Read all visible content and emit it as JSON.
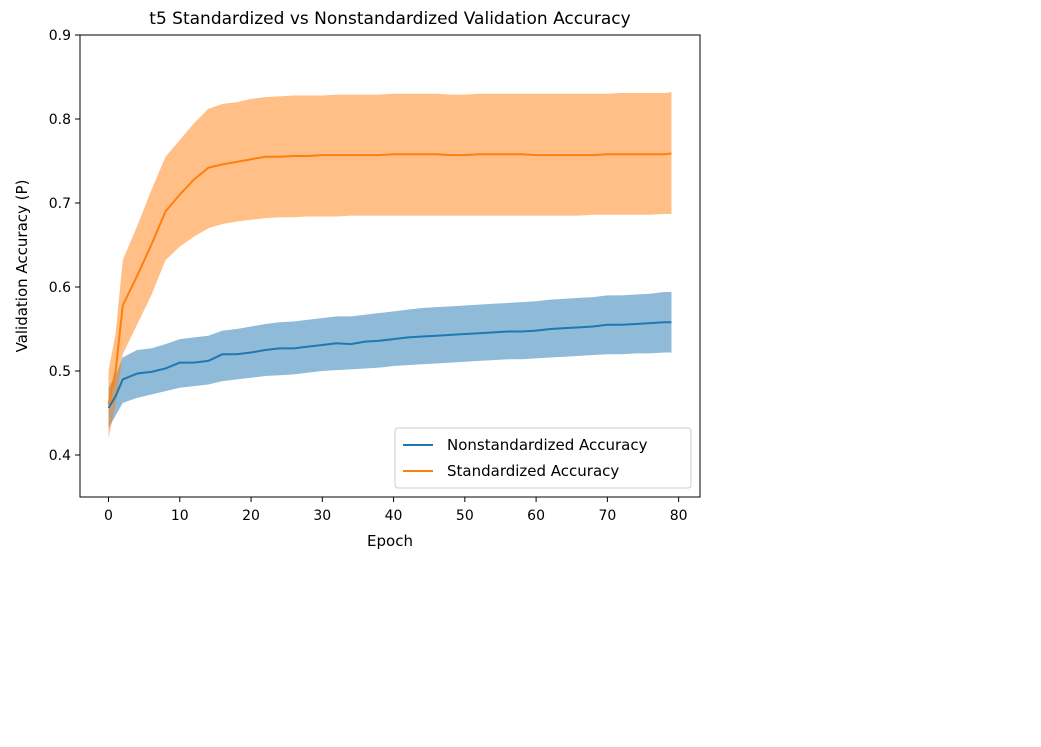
{
  "chart_data": {
    "type": "line",
    "title": "t5 Standardized vs Nonstandardized Validation Accuracy",
    "xlabel": "Epoch",
    "ylabel": "Validation Accuracy (P)",
    "xlim": [
      -4,
      83
    ],
    "ylim": [
      0.35,
      0.9
    ],
    "xticks": [
      0,
      10,
      20,
      30,
      40,
      50,
      60,
      70,
      80
    ],
    "yticks": [
      0.4,
      0.5,
      0.6,
      0.7,
      0.8,
      0.9
    ],
    "xtick_labels": [
      "0",
      "10",
      "20",
      "30",
      "40",
      "50",
      "60",
      "70",
      "80"
    ],
    "ytick_labels": [
      "0.4",
      "0.5",
      "0.6",
      "0.7",
      "0.8",
      "0.9"
    ],
    "grid": false,
    "legend_position": "lower right",
    "series": [
      {
        "name": "Nonstandardized Accuracy",
        "color": "#1f77b4",
        "band_color": "#1f77b4",
        "band_opacity": 0.5,
        "x": [
          0,
          1,
          2,
          4,
          6,
          8,
          10,
          12,
          14,
          16,
          18,
          20,
          22,
          24,
          26,
          28,
          30,
          32,
          34,
          36,
          38,
          40,
          42,
          44,
          46,
          48,
          50,
          52,
          54,
          56,
          58,
          60,
          62,
          64,
          66,
          68,
          70,
          72,
          74,
          76,
          78,
          79
        ],
        "y": [
          0.456,
          0.47,
          0.49,
          0.497,
          0.499,
          0.503,
          0.51,
          0.51,
          0.512,
          0.52,
          0.52,
          0.522,
          0.525,
          0.527,
          0.527,
          0.529,
          0.531,
          0.533,
          0.532,
          0.535,
          0.536,
          0.538,
          0.54,
          0.541,
          0.542,
          0.543,
          0.544,
          0.545,
          0.546,
          0.547,
          0.547,
          0.548,
          0.55,
          0.551,
          0.552,
          0.553,
          0.555,
          0.555,
          0.556,
          0.557,
          0.558,
          0.558
        ],
        "lower": [
          0.432,
          0.447,
          0.462,
          0.468,
          0.472,
          0.476,
          0.48,
          0.482,
          0.484,
          0.488,
          0.49,
          0.492,
          0.494,
          0.495,
          0.496,
          0.498,
          0.5,
          0.501,
          0.502,
          0.503,
          0.504,
          0.506,
          0.507,
          0.508,
          0.509,
          0.51,
          0.511,
          0.512,
          0.513,
          0.514,
          0.514,
          0.515,
          0.516,
          0.517,
          0.518,
          0.519,
          0.52,
          0.52,
          0.521,
          0.521,
          0.522,
          0.522
        ],
        "upper": [
          0.48,
          0.495,
          0.516,
          0.525,
          0.527,
          0.532,
          0.538,
          0.54,
          0.542,
          0.548,
          0.55,
          0.553,
          0.556,
          0.558,
          0.559,
          0.561,
          0.563,
          0.565,
          0.565,
          0.567,
          0.569,
          0.571,
          0.573,
          0.575,
          0.576,
          0.577,
          0.578,
          0.579,
          0.58,
          0.581,
          0.582,
          0.583,
          0.585,
          0.586,
          0.587,
          0.588,
          0.59,
          0.59,
          0.591,
          0.592,
          0.594,
          0.594
        ]
      },
      {
        "name": "Standardized Accuracy",
        "color": "#ff7f0e",
        "band_color": "#ff7f0e",
        "band_opacity": 0.5,
        "x": [
          0,
          1,
          2,
          4,
          6,
          8,
          10,
          12,
          14,
          16,
          18,
          20,
          22,
          24,
          26,
          28,
          30,
          32,
          34,
          36,
          38,
          40,
          42,
          44,
          46,
          48,
          50,
          52,
          54,
          56,
          58,
          60,
          62,
          64,
          66,
          68,
          70,
          72,
          74,
          76,
          78,
          79
        ],
        "y": [
          0.46,
          0.5,
          0.578,
          0.613,
          0.65,
          0.69,
          0.71,
          0.728,
          0.742,
          0.746,
          0.749,
          0.752,
          0.755,
          0.755,
          0.756,
          0.756,
          0.757,
          0.757,
          0.757,
          0.757,
          0.757,
          0.758,
          0.758,
          0.758,
          0.758,
          0.757,
          0.757,
          0.758,
          0.758,
          0.758,
          0.758,
          0.757,
          0.757,
          0.757,
          0.757,
          0.757,
          0.758,
          0.758,
          0.758,
          0.758,
          0.758,
          0.759
        ],
        "lower": [
          0.42,
          0.46,
          0.52,
          0.555,
          0.59,
          0.632,
          0.648,
          0.66,
          0.67,
          0.675,
          0.678,
          0.68,
          0.682,
          0.683,
          0.683,
          0.684,
          0.684,
          0.684,
          0.685,
          0.685,
          0.685,
          0.685,
          0.685,
          0.685,
          0.685,
          0.685,
          0.685,
          0.685,
          0.685,
          0.685,
          0.685,
          0.685,
          0.685,
          0.685,
          0.685,
          0.686,
          0.686,
          0.686,
          0.686,
          0.686,
          0.687,
          0.687
        ],
        "upper": [
          0.5,
          0.545,
          0.632,
          0.672,
          0.715,
          0.755,
          0.775,
          0.795,
          0.812,
          0.818,
          0.82,
          0.824,
          0.826,
          0.827,
          0.828,
          0.828,
          0.828,
          0.829,
          0.829,
          0.829,
          0.829,
          0.83,
          0.83,
          0.83,
          0.83,
          0.829,
          0.829,
          0.83,
          0.83,
          0.83,
          0.83,
          0.83,
          0.83,
          0.83,
          0.83,
          0.83,
          0.83,
          0.831,
          0.831,
          0.831,
          0.831,
          0.832
        ]
      }
    ]
  }
}
